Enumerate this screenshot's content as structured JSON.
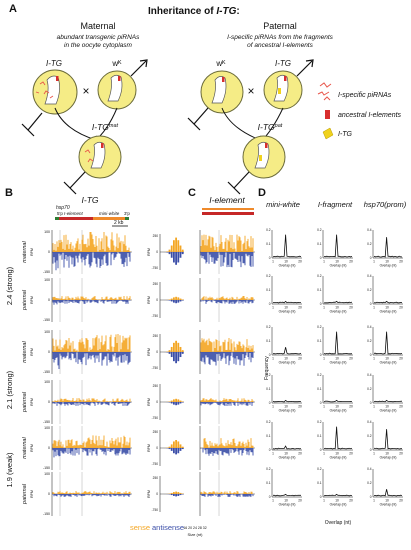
{
  "panelA": {
    "letter": "A",
    "title_prefix": "Inheritance of ",
    "title_gene": "I-TG",
    "title_suffix": ":",
    "maternal": {
      "heading": "Maternal",
      "desc1": "abundant transgenic piRNAs",
      "desc2": "in the oocyte cytoplasm"
    },
    "paternal": {
      "heading": "Paternal",
      "desc1": "I-specific piRNAs from the fragments",
      "desc2": "of ancestral I-elements"
    },
    "cross_symbol": "×",
    "female_itg": "I-TG",
    "wk": "wᴷ",
    "offspring_mat": "I-TG",
    "offspring_mat_sup": "mat",
    "offspring_pat": "I-TG",
    "offspring_pat_sup": "pat",
    "legend": [
      "I-specific piRNAs",
      "ancestral I-elements",
      "I-TG"
    ],
    "colors": {
      "egg": "#f5ec86",
      "egg_stroke": "#6b6b3a",
      "pirna": "#e8554a",
      "ancestral": "#d82e2e",
      "itg": "#f0d21e"
    }
  },
  "panelB": {
    "letter": "B",
    "title": "I-TG",
    "track_labels": [
      "hsp70",
      "5'p",
      "I-element",
      "mini-white",
      "3'p",
      "2 kb"
    ],
    "groups": [
      "2.4 (strong)",
      "2.1 (strong)",
      "1.9 (weak)"
    ],
    "rows": [
      "maternal",
      "paternal"
    ],
    "y_ticks_left": [
      "100",
      "0",
      "-150"
    ],
    "y_ticks_side": [
      "250",
      "0",
      "-750"
    ],
    "rpm": "RPM",
    "size_axis": "Size (nt)",
    "size_ticks": "16 20 24 28 32",
    "sense": "sense",
    "antisense": "antisense",
    "colors": {
      "sense": "#f4a623",
      "antisense": "#3b4ea8",
      "hsp70": "#2e7d32",
      "ielement": "#c62828",
      "miniwhite": "#ef8a2b"
    }
  },
  "panelC": {
    "letter": "C",
    "title": "I-element"
  },
  "panelD": {
    "letter": "D",
    "columns": [
      "mini-white",
      "I-fragment",
      "hsp70(prom)"
    ],
    "ylabel": "Frequency",
    "xlabel": "Overlap (nt)",
    "x_ticks": [
      "1",
      "10",
      "20"
    ],
    "y_ticks_small": [
      "0.2",
      "0.1",
      "0"
    ],
    "y_ticks_large": [
      "0.4",
      "0.2",
      "0"
    ]
  }
}
